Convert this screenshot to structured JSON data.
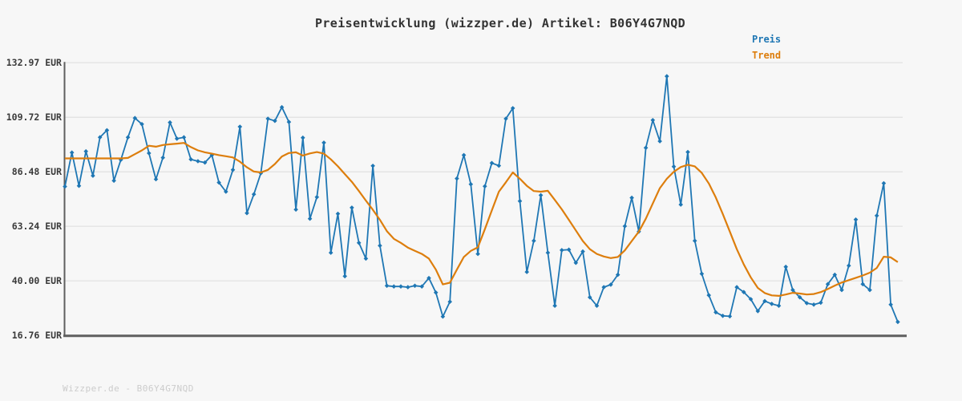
{
  "title": "Preisentwicklung (wizzper.de) Artikel: B06Y4G7NQD",
  "legend": {
    "preis_label": "Preis",
    "trend_label": "Trend"
  },
  "watermark": "Wizzper.de - B06Y4G7NQD",
  "colors": {
    "preis": "#1f77b4",
    "trend": "#dd7e0d",
    "grid": "#e0e0e0",
    "axis": "#5f5f5f",
    "background": "#f7f7f7",
    "text": "#333333",
    "watermark": "#cccccc"
  },
  "chart_data": {
    "type": "line",
    "title": "Preisentwicklung (wizzper.de) Artikel: B06Y4G7NQD",
    "xlabel": "",
    "ylabel": "EUR",
    "ylim": [
      16.76,
      132.97
    ],
    "grid": "horizontal",
    "legend_position": "top-right",
    "y_ticks": {
      "values": [
        132.97,
        109.72,
        86.48,
        63.24,
        40.0,
        16.76
      ],
      "labels": [
        "132.97 EUR",
        "109.72 EUR",
        "86.48 EUR",
        "63.24 EUR",
        "40.00 EUR",
        "16.76 EUR"
      ]
    },
    "x": "index (0-119, unlabeled time axis)",
    "series": [
      {
        "name": "Preis",
        "color": "#1f77b4",
        "marker": "diamond",
        "values": [
          80.2,
          94.7,
          80.5,
          95.2,
          84.8,
          101.2,
          104.2,
          82.7,
          91.6,
          101.2,
          109.4,
          106.8,
          94.4,
          83.3,
          92.5,
          107.5,
          100.6,
          101.2,
          91.8,
          91.0,
          90.4,
          93.6,
          81.9,
          78.0,
          87.3,
          105.7,
          68.9,
          76.9,
          85.9,
          109.1,
          108.2,
          114.0,
          107.7,
          70.4,
          101.0,
          66.5,
          75.7,
          98.9,
          52.0,
          68.6,
          42.0,
          71.2,
          56.2,
          49.5,
          89.0,
          55.0,
          37.9,
          37.6,
          37.6,
          37.3,
          37.9,
          37.6,
          41.2,
          35.0,
          24.8,
          31.1,
          83.6,
          93.6,
          81.2,
          51.5,
          80.3,
          90.2,
          89.1,
          109.1,
          113.6,
          74.0,
          43.8,
          57.1,
          76.5,
          52.0,
          29.4,
          53.1,
          53.3,
          47.7,
          52.5,
          33.0,
          29.4,
          37.3,
          38.4,
          42.6,
          63.3,
          75.4,
          61.0,
          96.7,
          108.5,
          99.5,
          127.2,
          88.7,
          72.5,
          94.9,
          57.1,
          43.0,
          33.9,
          26.6,
          25.1,
          24.9,
          37.3,
          35.2,
          32.2,
          27.1,
          31.4,
          30.2,
          29.4,
          46.0,
          36.1,
          33.0,
          30.5,
          29.9,
          30.7,
          38.6,
          42.6,
          36.1,
          46.5,
          66.1,
          38.6,
          36.1,
          67.8,
          81.6,
          29.9,
          22.5
        ]
      },
      {
        "name": "Trend",
        "color": "#dd7e0d",
        "marker": "none",
        "values": [
          92.2,
          92.2,
          92.2,
          92.2,
          92.2,
          92.2,
          92.2,
          92.2,
          92.2,
          92.4,
          94.0,
          95.6,
          97.6,
          97.2,
          97.9,
          98.2,
          98.5,
          98.8,
          97.0,
          95.6,
          94.8,
          94.2,
          93.6,
          93.1,
          92.6,
          90.8,
          88.4,
          86.6,
          86.2,
          87.3,
          89.8,
          93.0,
          94.5,
          94.8,
          93.4,
          94.3,
          94.9,
          94.2,
          91.8,
          88.8,
          85.5,
          82.2,
          78.3,
          74.2,
          70.3,
          66.0,
          61.2,
          57.9,
          56.2,
          54.2,
          52.8,
          51.5,
          49.5,
          44.8,
          38.5,
          39.2,
          44.8,
          50.2,
          52.8,
          54.3,
          62.0,
          70.0,
          78.0,
          82.0,
          86.2,
          83.5,
          80.5,
          78.3,
          78.0,
          78.4,
          74.5,
          70.5,
          66.0,
          61.5,
          57.0,
          53.5,
          51.5,
          50.4,
          49.7,
          50.2,
          53.0,
          57.0,
          61.0,
          66.5,
          73.0,
          79.5,
          83.5,
          86.5,
          88.5,
          89.5,
          88.8,
          86.0,
          81.5,
          75.5,
          68.5,
          61.0,
          53.5,
          47.0,
          41.5,
          37.0,
          34.8,
          33.8,
          33.6,
          34.2,
          34.9,
          34.6,
          34.2,
          34.4,
          35.2,
          36.5,
          38.0,
          39.3,
          40.3,
          41.3,
          42.3,
          43.5,
          45.5,
          50.3,
          50.0,
          48.0
        ]
      }
    ]
  }
}
